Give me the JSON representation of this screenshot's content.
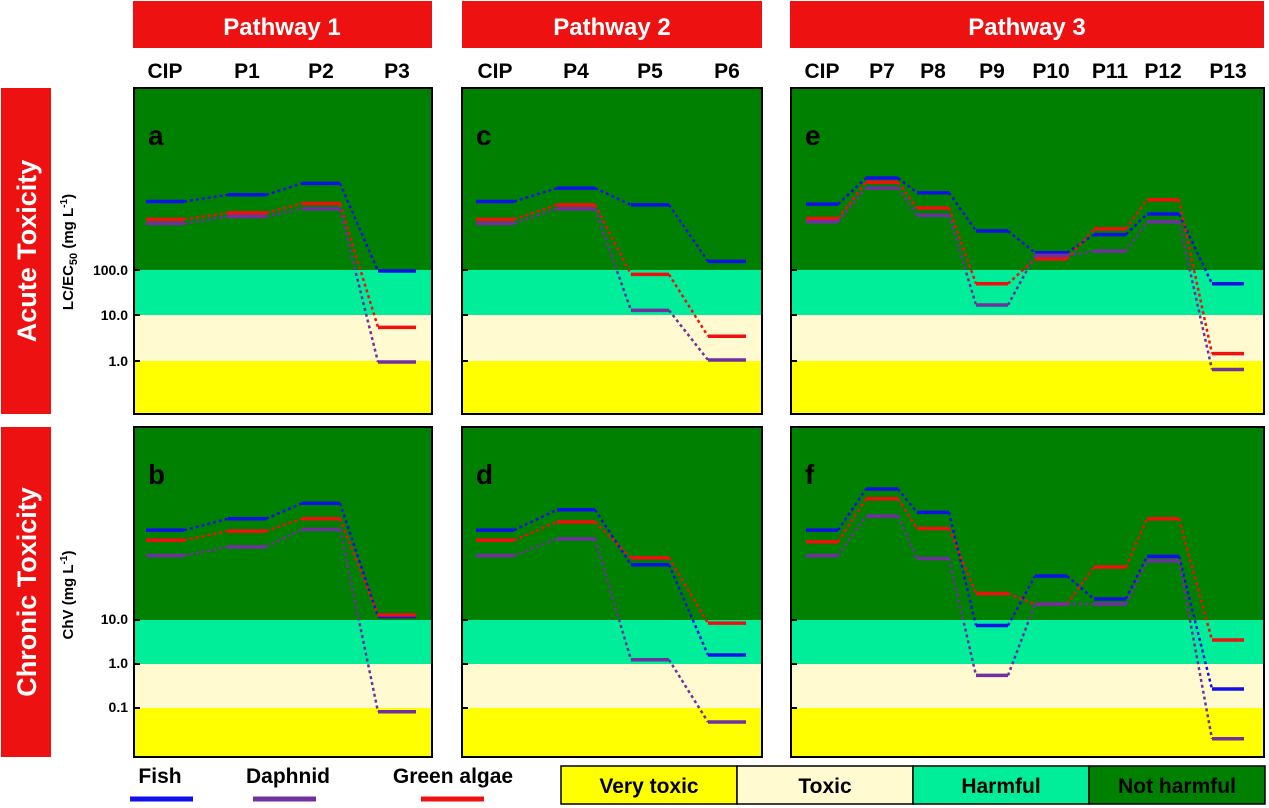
{
  "pathway_headers": [
    "Pathway 1",
    "Pathway 2",
    "Pathway 3"
  ],
  "row_headers": [
    "Acute Toxicity",
    "Chronic Toxicity"
  ],
  "y_axis_labels": {
    "acute": {
      "main": "LC/EC",
      "sub": "50",
      "unit_open": " (mg L",
      "unit_sup": "-1",
      "unit_close": ")"
    },
    "chronic": {
      "main": "ChV",
      "unit_open": " (mg L",
      "unit_sup": "-1",
      "unit_close": ")"
    }
  },
  "y_ticks": {
    "acute": [
      "100.0",
      "10.0",
      "1.0"
    ],
    "chronic": [
      "10.0",
      "1.0",
      "0.1"
    ]
  },
  "legend": {
    "species": [
      {
        "name": "Fish",
        "color": "#1010e8"
      },
      {
        "name": "Daphnid",
        "color": "#7030a0"
      },
      {
        "name": "Green algae",
        "color": "#f01010"
      }
    ],
    "toxicity_classes": [
      {
        "name": "Very toxic",
        "color": "#ffff00"
      },
      {
        "name": "Toxic",
        "color": "#fffad0"
      },
      {
        "name": "Harmful",
        "color": "#00ee99"
      },
      {
        "name": "Not harmful",
        "color": "#008000"
      }
    ]
  },
  "chart_data": [
    {
      "panel": "a",
      "type": "line",
      "pathway": "Pathway 1",
      "endpoint": "acute",
      "categories": [
        "CIP",
        "P1",
        "P2",
        "P3"
      ],
      "yscale": "log",
      "series": [
        {
          "name": "Fish",
          "values": [
            3200,
            4500,
            8000,
            95
          ]
        },
        {
          "name": "Green algae",
          "values": [
            1300,
            1800,
            2900,
            5.5
          ]
        },
        {
          "name": "Daphnid",
          "values": [
            1050,
            1500,
            2200,
            0.95
          ]
        }
      ]
    },
    {
      "panel": "b",
      "type": "line",
      "pathway": "Pathway 1",
      "endpoint": "chronic",
      "categories": [
        "CIP",
        "P1",
        "P2",
        "P3"
      ],
      "yscale": "log",
      "series": [
        {
          "name": "Fish",
          "values": [
            1100,
            2000,
            4500,
            12
          ]
        },
        {
          "name": "Green algae",
          "values": [
            650,
            1050,
            2000,
            13
          ]
        },
        {
          "name": "Daphnid",
          "values": [
            290,
            460,
            1150,
            0.082
          ]
        }
      ]
    },
    {
      "panel": "c",
      "type": "line",
      "pathway": "Pathway 2",
      "endpoint": "acute",
      "categories": [
        "CIP",
        "P4",
        "P5",
        "P6"
      ],
      "yscale": "log",
      "series": [
        {
          "name": "Fish",
          "values": [
            3200,
            6300,
            2700,
            155
          ]
        },
        {
          "name": "Green algae",
          "values": [
            1300,
            2700,
            80,
            3.5
          ]
        },
        {
          "name": "Daphnid",
          "values": [
            1050,
            2200,
            13,
            1.05
          ]
        }
      ]
    },
    {
      "panel": "d",
      "type": "line",
      "pathway": "Pathway 2",
      "endpoint": "chronic",
      "categories": [
        "CIP",
        "P4",
        "P5",
        "P6"
      ],
      "yscale": "log",
      "series": [
        {
          "name": "Fish",
          "values": [
            1100,
            3200,
            180,
            1.6
          ]
        },
        {
          "name": "Green algae",
          "values": [
            650,
            1700,
            260,
            8.5
          ]
        },
        {
          "name": "Daphnid",
          "values": [
            290,
            700,
            1.25,
            0.048
          ]
        }
      ]
    },
    {
      "panel": "e",
      "type": "line",
      "pathway": "Pathway 3",
      "endpoint": "acute",
      "categories": [
        "CIP",
        "P7",
        "P8",
        "P9",
        "P10",
        "P11",
        "P12",
        "P13"
      ],
      "yscale": "log",
      "series": [
        {
          "name": "Fish",
          "values": [
            2800,
            10500,
            5000,
            720,
            240,
            600,
            1700,
            50
          ]
        },
        {
          "name": "Green algae",
          "values": [
            1350,
            8500,
            2300,
            50,
            175,
            800,
            3500,
            1.45
          ]
        },
        {
          "name": "Daphnid",
          "values": [
            1150,
            6300,
            1600,
            17,
            210,
            260,
            1150,
            0.65
          ]
        }
      ]
    },
    {
      "panel": "f",
      "type": "line",
      "pathway": "Pathway 3",
      "endpoint": "chronic",
      "categories": [
        "CIP",
        "P7",
        "P8",
        "P9",
        "P10",
        "P11",
        "P12",
        "P13"
      ],
      "yscale": "log",
      "series": [
        {
          "name": "Fish",
          "values": [
            1100,
            9500,
            2800,
            7.5,
            100,
            30,
            280,
            0.27
          ]
        },
        {
          "name": "Green algae",
          "values": [
            600,
            5700,
            1200,
            40,
            23,
            160,
            2000,
            3.5
          ]
        },
        {
          "name": "Daphnid",
          "values": [
            290,
            2300,
            250,
            0.55,
            23,
            23,
            220,
            0.02
          ]
        }
      ]
    }
  ]
}
